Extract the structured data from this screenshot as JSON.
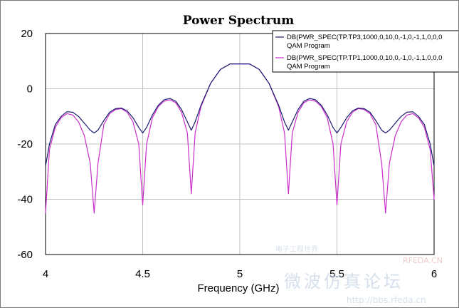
{
  "chart_data": {
    "type": "line",
    "title": "Power Spectrum",
    "xlabel": "Frequency (GHz)",
    "ylabel": "",
    "xlim": [
      4,
      6
    ],
    "ylim": [
      -60,
      20
    ],
    "xticks": [
      "4",
      "4.5",
      "5",
      "5.5",
      "6"
    ],
    "yticks": [
      "20",
      "0",
      "-20",
      "-40",
      "-60"
    ],
    "grid": true,
    "legend_position": "top-right",
    "series": [
      {
        "name": "DB(PWR_SPEC(TP.TP3,1000,0,10,0,-1,0,-1,1,0,0,0",
        "subtitle": "QAM Program",
        "color": "#1a1a6e",
        "x": [
          4.0,
          4.02,
          4.05,
          4.08,
          4.11,
          4.14,
          4.17,
          4.2,
          4.23,
          4.25,
          4.27,
          4.3,
          4.33,
          4.36,
          4.39,
          4.42,
          4.45,
          4.48,
          4.5,
          4.52,
          4.55,
          4.58,
          4.61,
          4.64,
          4.67,
          4.7,
          4.73,
          4.75,
          4.77,
          4.8,
          4.85,
          4.9,
          4.95,
          5.0,
          5.05,
          5.1,
          5.15,
          5.2,
          5.23,
          5.25,
          5.27,
          5.3,
          5.33,
          5.36,
          5.39,
          5.42,
          5.45,
          5.48,
          5.5,
          5.52,
          5.55,
          5.58,
          5.61,
          5.64,
          5.67,
          5.7,
          5.73,
          5.75,
          5.77,
          5.8,
          5.83,
          5.86,
          5.89,
          5.92,
          5.95,
          5.98,
          6.0
        ],
        "y": [
          -28,
          -20,
          -13,
          -10,
          -8.3,
          -8.5,
          -10,
          -12.5,
          -15,
          -16,
          -15,
          -11.5,
          -8.5,
          -7.2,
          -7,
          -8,
          -10.5,
          -14,
          -16,
          -14,
          -9.5,
          -6,
          -4,
          -3.5,
          -4.5,
          -7.5,
          -12,
          -15,
          -12,
          -6,
          2,
          7,
          9,
          9,
          9,
          7,
          2,
          -6,
          -12,
          -15,
          -12,
          -7.5,
          -4.5,
          -3.5,
          -4,
          -6,
          -9.5,
          -14,
          -16,
          -14,
          -10.5,
          -8,
          -7,
          -7.2,
          -8.5,
          -11.5,
          -15,
          -16,
          -15,
          -12.5,
          -10,
          -8.5,
          -8.3,
          -10,
          -13,
          -20,
          -28
        ]
      },
      {
        "name": "DB(PWR_SPEC(TP.TP1,1000,0,10,0,-1,0,-1,1,0,0,0",
        "subtitle": "QAM Program",
        "color": "#cc2fcc",
        "x": [
          4.0,
          4.02,
          4.05,
          4.08,
          4.11,
          4.14,
          4.17,
          4.2,
          4.23,
          4.25,
          4.27,
          4.3,
          4.33,
          4.36,
          4.39,
          4.42,
          4.45,
          4.48,
          4.5,
          4.52,
          4.55,
          4.58,
          4.61,
          4.64,
          4.67,
          4.7,
          4.73,
          4.75,
          4.77,
          4.8,
          4.85,
          4.9,
          4.95,
          5.0,
          5.05,
          5.1,
          5.15,
          5.2,
          5.23,
          5.25,
          5.27,
          5.3,
          5.33,
          5.36,
          5.39,
          5.42,
          5.45,
          5.48,
          5.5,
          5.52,
          5.55,
          5.58,
          5.61,
          5.64,
          5.67,
          5.7,
          5.73,
          5.75,
          5.77,
          5.8,
          5.83,
          5.86,
          5.89,
          5.92,
          5.95,
          5.98,
          6.0
        ],
        "y": [
          -45,
          -22,
          -14,
          -10.5,
          -9,
          -9.5,
          -12,
          -17,
          -27,
          -45,
          -27,
          -13,
          -9,
          -7.5,
          -7.2,
          -8.5,
          -12,
          -20,
          -42,
          -20,
          -10.5,
          -6.5,
          -4.5,
          -4,
          -5,
          -8.5,
          -16,
          -38,
          -16,
          -6.5,
          2,
          7,
          9,
          9,
          9,
          7,
          2,
          -6.5,
          -16,
          -38,
          -16,
          -8.5,
          -5,
          -4,
          -4.5,
          -6.5,
          -10.5,
          -20,
          -42,
          -20,
          -12,
          -8.5,
          -7.2,
          -7.5,
          -9,
          -13,
          -27,
          -45,
          -27,
          -17,
          -12,
          -9.5,
          -9,
          -10.5,
          -14,
          -22,
          -40
        ]
      }
    ]
  },
  "watermark": {
    "top_text": "电子工程世界",
    "brand": "RFEDA.CN",
    "cn_text": "微波仿真论坛",
    "url": "http://bbs.rfeda.cn"
  }
}
